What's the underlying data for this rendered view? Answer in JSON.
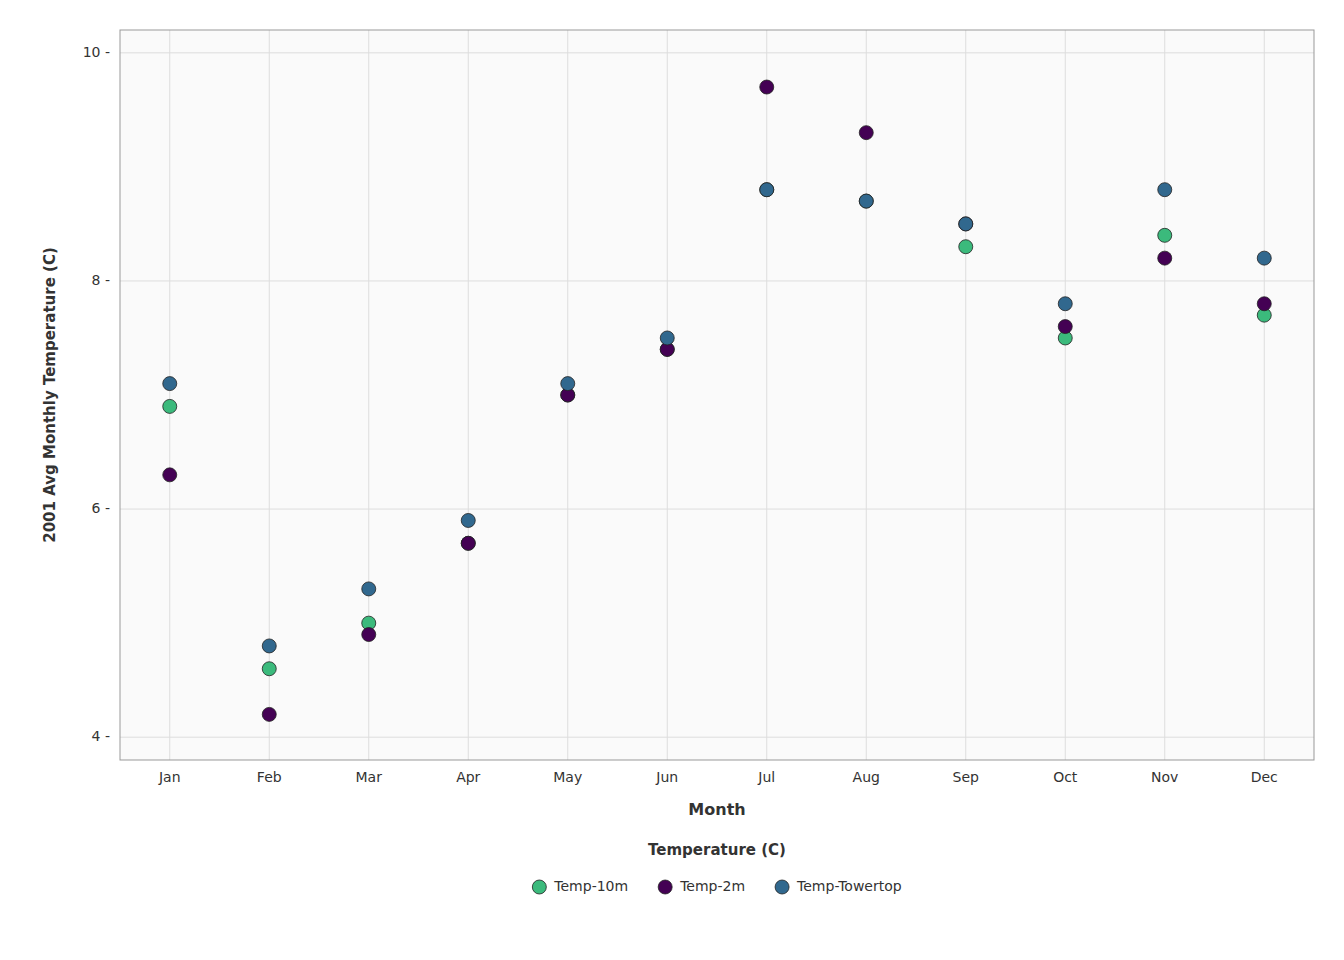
{
  "chart_data": {
    "type": "scatter",
    "xlabel": "Month",
    "ylabel": "2001 Avg Monthly Temperature (C)",
    "legend_title": "Temperature (C)",
    "categories": [
      "Jan",
      "Feb",
      "Mar",
      "Apr",
      "May",
      "Jun",
      "Jul",
      "Aug",
      "Sep",
      "Oct",
      "Nov",
      "Dec"
    ],
    "series": [
      {
        "name": "Temp-10m",
        "color": "#3bba7c",
        "values": [
          6.9,
          4.6,
          5.0,
          5.7,
          7.0,
          7.4,
          8.8,
          8.7,
          8.3,
          7.5,
          8.4,
          7.7
        ]
      },
      {
        "name": "Temp-2m",
        "color": "#440154",
        "values": [
          6.3,
          4.2,
          4.9,
          5.7,
          7.0,
          7.4,
          9.7,
          9.3,
          8.5,
          7.6,
          8.2,
          7.8
        ]
      },
      {
        "name": "Temp-Towertop",
        "color": "#31688e",
        "values": [
          7.1,
          4.8,
          5.3,
          5.9,
          7.1,
          7.5,
          8.8,
          8.7,
          8.5,
          7.8,
          8.8,
          8.2
        ]
      }
    ],
    "ylim": [
      3.8,
      10.2
    ],
    "yticks": [
      {
        "value": 4,
        "label": "4 -"
      },
      {
        "value": 6,
        "label": "6 -"
      },
      {
        "value": 8,
        "label": "8 -"
      },
      {
        "value": 10,
        "label": "10 -"
      }
    ],
    "grid": true,
    "legend": "bottom",
    "marker": "circle"
  }
}
